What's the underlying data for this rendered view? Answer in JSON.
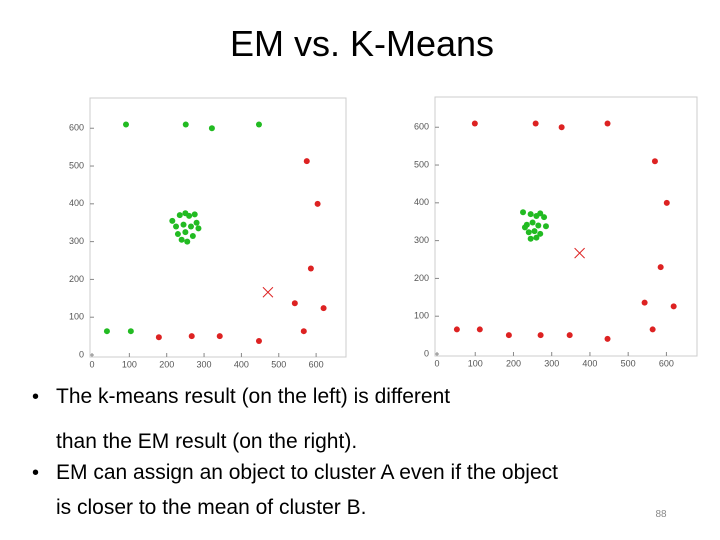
{
  "title": "EM vs. K-Means",
  "bullets": [
    "The k-means result (on the left) is different than the EM result (on the right).",
    "EM can assign an object to cluster A even if the object is closer to the mean of cluster B."
  ],
  "page_number": 88,
  "chart_data": [
    {
      "type": "scatter",
      "xlim": [
        0,
        680
      ],
      "ylim": [
        0,
        680
      ],
      "xticks": [
        0,
        100,
        200,
        300,
        400,
        500,
        600
      ],
      "yticks": [
        0,
        100,
        200,
        300,
        400,
        500,
        600
      ],
      "series": [
        {
          "color": "#22bb22",
          "marker": "o",
          "x": [
            91,
            251,
            321,
            447,
            40,
            104,
            215,
            235,
            250,
            260,
            275,
            225,
            245,
            265,
            280,
            230,
            250,
            270,
            240,
            255,
            285
          ],
          "values": [
            610,
            610,
            600,
            610,
            63,
            63,
            355,
            370,
            375,
            368,
            372,
            340,
            345,
            340,
            350,
            320,
            325,
            315,
            305,
            300,
            335
          ]
        },
        {
          "color": "#dd2222",
          "marker": "o",
          "x": [
            575,
            604,
            586,
            543,
            620,
            567,
            179,
            267,
            342,
            447
          ],
          "values": [
            513,
            400,
            229,
            137,
            124,
            63,
            47,
            50,
            50,
            37
          ]
        },
        {
          "color": "#dd2222",
          "marker": "x",
          "x": [
            471
          ],
          "values": [
            166
          ]
        }
      ]
    },
    {
      "type": "scatter",
      "xlim": [
        0,
        680
      ],
      "ylim": [
        0,
        680
      ],
      "xticks": [
        0,
        100,
        200,
        300,
        400,
        500,
        600
      ],
      "yticks": [
        0,
        100,
        200,
        300,
        400,
        500,
        600
      ],
      "series": [
        {
          "color": "#22bb22",
          "marker": "o",
          "x": [
            225,
            245,
            260,
            270,
            280,
            235,
            250,
            265,
            285,
            240,
            255,
            270,
            245,
            260,
            230
          ],
          "values": [
            375,
            370,
            365,
            372,
            362,
            342,
            348,
            340,
            338,
            322,
            325,
            318,
            305,
            308,
            335
          ]
        },
        {
          "color": "#dd2222",
          "marker": "o",
          "x": [
            99,
            258,
            326,
            446,
            570,
            601,
            585,
            543,
            619,
            564,
            52,
            112,
            188,
            271,
            347,
            446
          ],
          "values": [
            610,
            610,
            600,
            610,
            510,
            400,
            230,
            136,
            126,
            65,
            65,
            65,
            50,
            50,
            50,
            40
          ]
        },
        {
          "color": "#dd2222",
          "marker": "x",
          "x": [
            373
          ],
          "values": [
            267
          ]
        }
      ]
    }
  ]
}
